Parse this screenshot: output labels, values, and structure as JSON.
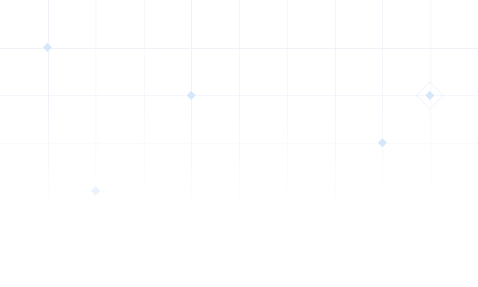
{
  "theme": {
    "background": "#ffffff",
    "grid_line_color": "#eef2f8",
    "diamond_color": "#d6e6fb"
  }
}
